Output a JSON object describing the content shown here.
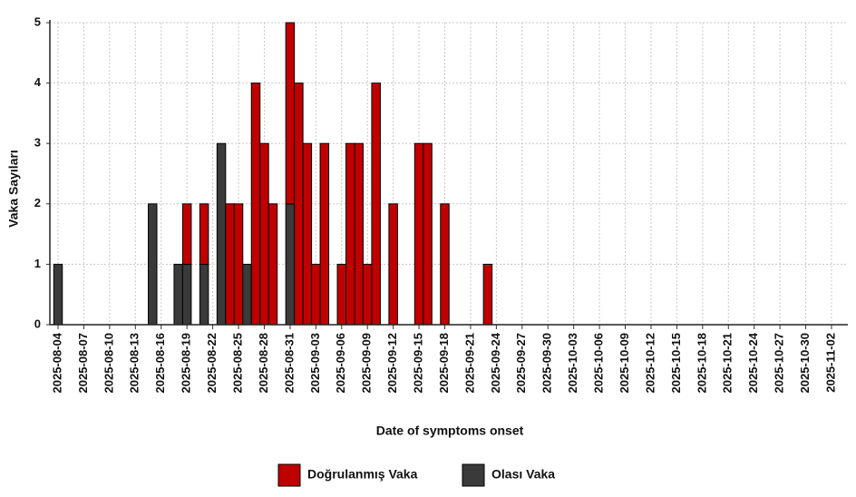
{
  "chart_data": {
    "type": "stacked_bar",
    "x_label": "Date of symptoms onset",
    "y_label": "Vaka Sayıları",
    "categories": [
      "2025-08-04",
      null,
      null,
      "2025-08-07",
      null,
      null,
      "2025-08-10",
      null,
      null,
      "2025-08-13",
      null,
      null,
      "2025-08-16",
      null,
      null,
      "2025-08-19",
      null,
      null,
      "2025-08-22",
      null,
      null,
      "2025-08-25",
      null,
      null,
      "2025-08-28",
      null,
      null,
      "2025-08-31",
      null,
      null,
      "2025-09-03",
      null,
      null,
      "2025-09-06",
      null,
      null,
      "2025-09-09",
      null,
      null,
      "2025-09-12",
      null,
      null,
      "2025-09-15",
      null,
      null,
      "2025-09-18",
      null,
      null,
      "2025-09-21",
      null,
      null,
      "2025-09-24",
      null,
      null,
      "2025-09-27",
      null,
      null,
      "2025-09-30",
      null,
      null,
      "2025-10-03",
      null,
      null,
      "2025-10-06",
      null,
      null,
      "2025-10-09",
      null,
      null,
      "2025-10-12",
      null,
      null,
      "2025-10-15",
      null,
      null,
      "2025-10-18",
      null,
      null,
      "2025-10-21",
      null,
      null,
      "2025-10-24",
      null,
      null,
      "2025-10-27",
      null,
      null,
      "2025-10-30",
      null,
      null,
      "2025-11-02"
    ],
    "series": [
      {
        "name": "Doğrulanmış Vaka",
        "color": "#c00000",
        "values": [
          0,
          0,
          0,
          0,
          0,
          0,
          0,
          0,
          0,
          0,
          0,
          0,
          0,
          0,
          0,
          1,
          0,
          1,
          0,
          0,
          2,
          2,
          0,
          4,
          3,
          2,
          0,
          3,
          4,
          3,
          1,
          3,
          0,
          1,
          3,
          3,
          1,
          4,
          0,
          2,
          0,
          0,
          3,
          3,
          0,
          2,
          0,
          0,
          0,
          0,
          1,
          0,
          0,
          0,
          0,
          0,
          0,
          0,
          0,
          0,
          0,
          0,
          0,
          0,
          0,
          0,
          0,
          0,
          0,
          0,
          0,
          0,
          0,
          0,
          0,
          0,
          0,
          0,
          0,
          0,
          0,
          0,
          0,
          0,
          0,
          0,
          0,
          0,
          0,
          0,
          0
        ]
      },
      {
        "name": "Olası Vaka",
        "color": "#3a3a3a",
        "values": [
          1,
          0,
          0,
          0,
          0,
          0,
          0,
          0,
          0,
          0,
          0,
          2,
          0,
          0,
          1,
          1,
          0,
          1,
          0,
          3,
          0,
          0,
          1,
          0,
          0,
          0,
          0,
          2,
          0,
          0,
          0,
          0,
          0,
          0,
          0,
          0,
          0,
          0,
          0,
          0,
          0,
          0,
          0,
          0,
          0,
          0,
          0,
          0,
          0,
          0,
          0,
          0,
          0,
          0,
          0,
          0,
          0,
          0,
          0,
          0,
          0,
          0,
          0,
          0,
          0,
          0,
          0,
          0,
          0,
          0,
          0,
          0,
          0,
          0,
          0,
          0,
          0,
          0,
          0,
          0,
          0,
          0,
          0,
          0,
          0,
          0,
          0,
          0,
          0,
          0,
          0
        ]
      }
    ],
    "ylim": [
      0,
      5
    ],
    "yticks": [
      0,
      1,
      2,
      3,
      4,
      5
    ],
    "grid": true
  }
}
